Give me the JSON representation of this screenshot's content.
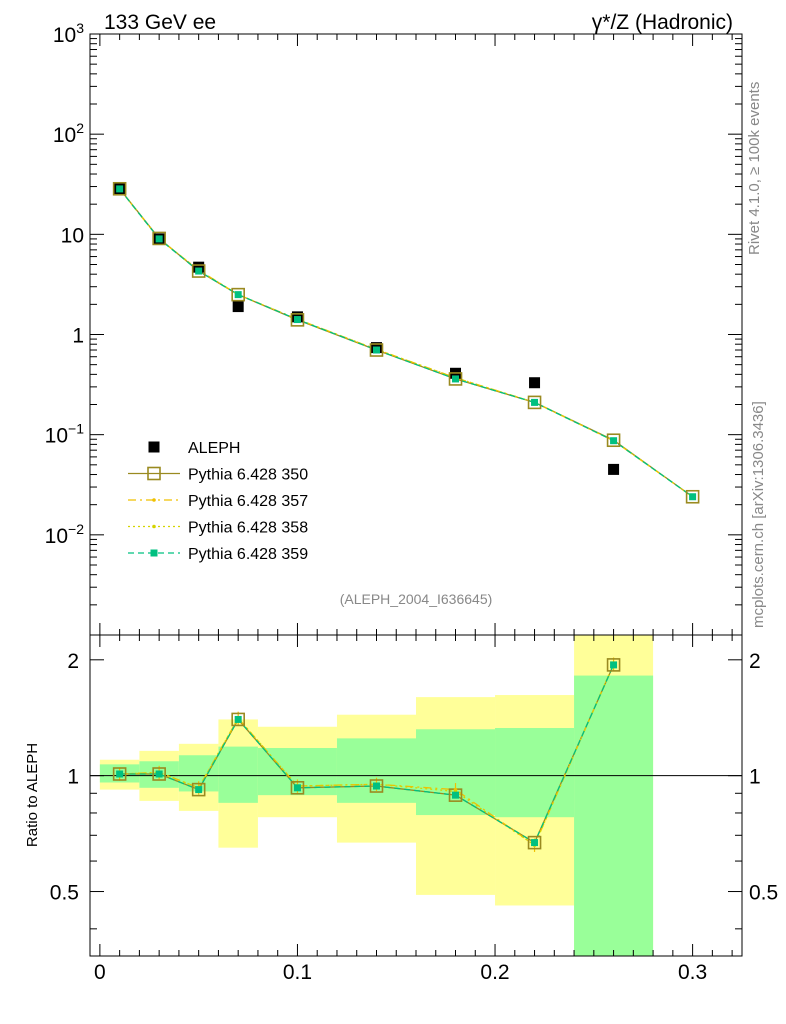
{
  "header": {
    "left": "133 GeV ee",
    "right": "γ*/Z (Hadronic)"
  },
  "side_labels": {
    "rivet": "Rivet 4.1.0, ≥ 100k events",
    "source": "mcplots.cern.ch [arXiv:1306.3436]"
  },
  "analysis_id": "(ALEPH_2004_I636645)",
  "colors": {
    "data": "#000000",
    "p350": "#9a8a20",
    "p357": "#f0c000",
    "p358": "#d4d400",
    "p359": "#00c080",
    "band_yellow": "#ffff99",
    "band_green": "#99ff99"
  },
  "chart_data": [
    {
      "type": "scatter",
      "yscale": "log",
      "title": "133 GeV ee",
      "xlabel": "",
      "ylabel": "",
      "xlim": [
        -0.005,
        0.325
      ],
      "ylim": [
        0.001,
        1000
      ],
      "y_tick_labels": [
        "10^-2",
        "10^-1",
        "1",
        "10",
        "10^2",
        "10^3"
      ],
      "legend": [
        "ALEPH",
        "Pythia 6.428 350",
        "Pythia 6.428 357",
        "Pythia 6.428 358",
        "Pythia 6.428 359"
      ],
      "legend_position": "bottom-left",
      "x": [
        0.01,
        0.03,
        0.05,
        0.07,
        0.1,
        0.14,
        0.18,
        0.22,
        0.26,
        0.3
      ],
      "series": [
        {
          "name": "ALEPH",
          "values": [
            28.5,
            9.0,
            4.7,
            1.9,
            1.5,
            0.74,
            0.41,
            0.33,
            0.045,
            null
          ]
        },
        {
          "name": "Pythia 6.428 350",
          "values": [
            28.5,
            9.1,
            4.3,
            2.5,
            1.4,
            0.7,
            0.36,
            0.21,
            0.088,
            0.024
          ]
        },
        {
          "name": "Pythia 6.428 357",
          "values": [
            28.3,
            9.0,
            4.4,
            2.5,
            1.42,
            0.71,
            0.37,
            0.21,
            0.087,
            0.024
          ]
        },
        {
          "name": "Pythia 6.428 358",
          "values": [
            28.3,
            9.0,
            4.4,
            2.5,
            1.42,
            0.71,
            0.37,
            0.21,
            0.087,
            0.024
          ]
        },
        {
          "name": "Pythia 6.428 359",
          "values": [
            28.4,
            9.0,
            4.3,
            2.5,
            1.41,
            0.7,
            0.36,
            0.21,
            0.087,
            0.024
          ]
        }
      ]
    },
    {
      "type": "line",
      "ylabel": "Ratio to ALEPH",
      "xlim": [
        -0.005,
        0.325
      ],
      "ylim": [
        0.34,
        2.32
      ],
      "x_tick_labels": [
        "0",
        "0.1",
        "0.2",
        "0.3"
      ],
      "y_tick_labels": [
        "0.5",
        "1",
        "2"
      ],
      "x": [
        0.01,
        0.03,
        0.05,
        0.07,
        0.1,
        0.14,
        0.18,
        0.22,
        0.26
      ],
      "bands": [
        {
          "x0": 0.0,
          "x1": 0.02,
          "yellow": [
            0.92,
            1.1
          ],
          "green": [
            0.96,
            1.07
          ]
        },
        {
          "x0": 0.02,
          "x1": 0.04,
          "yellow": [
            0.86,
            1.16
          ],
          "green": [
            0.93,
            1.09
          ]
        },
        {
          "x0": 0.04,
          "x1": 0.06,
          "yellow": [
            0.81,
            1.21
          ],
          "green": [
            0.91,
            1.13
          ]
        },
        {
          "x0": 0.06,
          "x1": 0.08,
          "yellow": [
            0.65,
            1.4
          ],
          "green": [
            0.85,
            1.19
          ]
        },
        {
          "x0": 0.08,
          "x1": 0.12,
          "yellow": [
            0.78,
            1.34
          ],
          "green": [
            0.89,
            1.18
          ]
        },
        {
          "x0": 0.12,
          "x1": 0.16,
          "yellow": [
            0.67,
            1.44
          ],
          "green": [
            0.85,
            1.25
          ]
        },
        {
          "x0": 0.16,
          "x1": 0.2,
          "yellow": [
            0.49,
            1.6
          ],
          "green": [
            0.79,
            1.32
          ]
        },
        {
          "x0": 0.2,
          "x1": 0.24,
          "yellow": [
            0.46,
            1.62
          ],
          "green": [
            0.78,
            1.33
          ]
        },
        {
          "x0": 0.24,
          "x1": 0.28,
          "yellow": [
            0.34,
            2.32
          ],
          "green": [
            0.34,
            1.82
          ]
        }
      ],
      "series": [
        {
          "name": "Pythia 6.428 350",
          "values": [
            1.01,
            1.01,
            0.92,
            1.4,
            0.93,
            0.94,
            0.89,
            0.67,
            1.94
          ]
        },
        {
          "name": "Pythia 6.428 357",
          "values": [
            1.01,
            1.02,
            0.93,
            1.41,
            0.94,
            0.95,
            0.92,
            0.66,
            1.95
          ]
        },
        {
          "name": "Pythia 6.428 358",
          "values": [
            1.01,
            1.02,
            0.93,
            1.41,
            0.94,
            0.95,
            0.91,
            0.66,
            1.95
          ]
        },
        {
          "name": "Pythia 6.428 359",
          "values": [
            1.01,
            1.01,
            0.92,
            1.4,
            0.93,
            0.94,
            0.89,
            0.67,
            1.94
          ]
        }
      ]
    }
  ]
}
